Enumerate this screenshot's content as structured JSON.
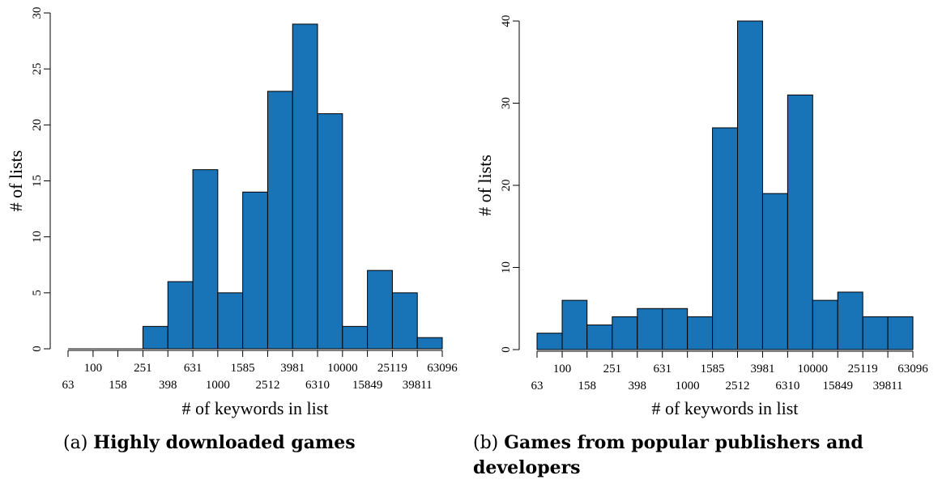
{
  "chart_data": [
    {
      "type": "bar",
      "xlabel": "# of keywords in list",
      "ylabel": "# of lists",
      "x_scale": "log10",
      "bin_edges": [
        63,
        100,
        158,
        251,
        398,
        631,
        1000,
        1585,
        2512,
        3981,
        6310,
        10000,
        15849,
        25119,
        39811,
        63096
      ],
      "values": [
        0,
        0,
        0,
        2,
        6,
        16,
        5,
        14,
        23,
        29,
        21,
        2,
        7,
        5,
        1
      ],
      "ylim": [
        0,
        30
      ],
      "yticks": [
        0,
        5,
        10,
        15,
        20,
        25,
        30
      ],
      "xticks_row1": [
        "100",
        "251",
        "631",
        "1585",
        "3981",
        "10000",
        "25119",
        "63096"
      ],
      "xticks_row2": [
        "63",
        "158",
        "398",
        "1000",
        "2512",
        "6310",
        "15849",
        "39811"
      ],
      "bar_color": "#1874b7",
      "caption_prefix": "(a)",
      "caption_title": "Highly downloaded games"
    },
    {
      "type": "bar",
      "xlabel": "# of keywords in list",
      "ylabel": "# of lists",
      "x_scale": "log10",
      "bin_edges": [
        63,
        100,
        158,
        251,
        398,
        631,
        1000,
        1585,
        2512,
        3981,
        6310,
        10000,
        15849,
        25119,
        39811,
        63096
      ],
      "values": [
        2,
        6,
        3,
        4,
        5,
        5,
        4,
        27,
        40,
        19,
        31,
        6,
        7,
        4,
        4
      ],
      "ylim": [
        0,
        40
      ],
      "yticks": [
        0,
        10,
        20,
        30,
        40
      ],
      "xticks_row1": [
        "100",
        "251",
        "631",
        "1585",
        "3981",
        "10000",
        "25119",
        "63096"
      ],
      "xticks_row2": [
        "63",
        "158",
        "398",
        "1000",
        "2512",
        "6310",
        "15849",
        "39811"
      ],
      "bar_color": "#1874b7",
      "caption_prefix": "(b)",
      "caption_title_line1": "Games from popular publishers and",
      "caption_title_line2": "developers"
    }
  ]
}
